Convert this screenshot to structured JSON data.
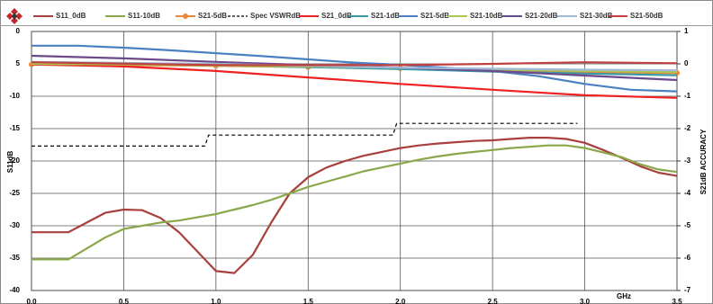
{
  "chart_data": {
    "type": "line",
    "ylabel": "S11dB",
    "y2label": "S21dB ACCURACY",
    "xlabel": "GHz",
    "xlim": [
      0,
      3.5
    ],
    "xticks": [
      {
        "value": 0,
        "label": "0.0"
      },
      0.5,
      {
        "value": 1,
        "label": "1.0"
      },
      1.5,
      {
        "value": 2,
        "label": "2.0"
      },
      2.5,
      {
        "value": 3,
        "label": "3.0"
      },
      3.5
    ],
    "ylim": [
      -40,
      0
    ],
    "yticks": [
      0,
      {
        "value": -5,
        "label": "5"
      },
      -10,
      -15,
      -20,
      -25,
      -30,
      -35,
      -40
    ],
    "y2lim": [
      -7,
      1
    ],
    "y2ticks": [
      1,
      0,
      -1,
      -2,
      -3,
      -4,
      -5,
      -6,
      -7
    ],
    "grid": true,
    "legend": "top",
    "series": [
      {
        "name": "S11_0dB",
        "color": "#a8403e",
        "x": [
          0,
          0.1,
          0.2,
          0.3,
          0.4,
          0.5,
          0.6,
          0.7,
          0.8,
          0.9,
          1.0,
          1.1,
          1.2,
          1.3,
          1.4,
          1.5,
          1.6,
          1.7,
          1.8,
          1.9,
          2.0,
          2.1,
          2.2,
          2.3,
          2.4,
          2.5,
          2.6,
          2.7,
          2.8,
          2.9,
          3.0,
          3.1,
          3.2,
          3.3,
          3.4,
          3.5
        ],
        "values": [
          -31,
          -31,
          -31,
          -29.5,
          -28,
          -27.5,
          -27.6,
          -28.8,
          -31,
          -34,
          -37,
          -37.3,
          -34.5,
          -29.5,
          -25,
          -22.5,
          -21,
          -20,
          -19.2,
          -18.6,
          -18,
          -17.6,
          -17.3,
          -17.1,
          -16.9,
          -16.8,
          -16.6,
          -16.4,
          -16.4,
          -16.6,
          -17.2,
          -18.3,
          -19.5,
          -20.8,
          -21.8,
          -22.3
        ]
      },
      {
        "name": "S11-10dB",
        "color": "#8aa84a",
        "x": [
          0,
          0.1,
          0.2,
          0.3,
          0.4,
          0.5,
          0.6,
          0.7,
          0.8,
          0.9,
          1.0,
          1.1,
          1.2,
          1.3,
          1.4,
          1.5,
          1.6,
          1.7,
          1.8,
          1.9,
          2.0,
          2.1,
          2.2,
          2.3,
          2.4,
          2.5,
          2.6,
          2.7,
          2.8,
          2.9,
          3.0,
          3.1,
          3.2,
          3.3,
          3.4,
          3.5
        ],
        "values": [
          -35.2,
          -35.2,
          -35.2,
          -33.5,
          -31.8,
          -30.5,
          -30,
          -29.5,
          -29.2,
          -28.7,
          -28.2,
          -27.5,
          -26.8,
          -26,
          -25,
          -24,
          -23.2,
          -22.4,
          -21.6,
          -21,
          -20.4,
          -19.8,
          -19.3,
          -18.9,
          -18.6,
          -18.3,
          -18,
          -17.8,
          -17.6,
          -17.6,
          -18,
          -18.7,
          -19.4,
          -20.5,
          -21.3,
          -21.7
        ]
      },
      {
        "name": "S21-5dB",
        "color": "#e8893a",
        "axis": "y2",
        "marker": true,
        "x": [
          0,
          0.5,
          1.0,
          1.5,
          2.0,
          2.5,
          3.0,
          3.5
        ],
        "values": [
          -0.02,
          -0.04,
          -0.06,
          -0.1,
          -0.14,
          -0.2,
          -0.26,
          -0.28
        ]
      },
      {
        "name": "Spec VSWRdB",
        "color": "#000000",
        "dash": true,
        "x": [
          0,
          0.94,
          0.96,
          1.96,
          1.98,
          2.96
        ],
        "values": [
          -17.7,
          -17.7,
          -16,
          -16,
          -14.2,
          -14.2
        ]
      },
      {
        "name": "S21_0dB",
        "color": "#ee2222",
        "axis": "y2",
        "x": [
          0,
          0.5,
          1.0,
          1.5,
          2.0,
          2.5,
          3.0,
          3.5
        ],
        "values": [
          -0.02,
          -0.08,
          -0.22,
          -0.42,
          -0.62,
          -0.8,
          -0.97,
          -1.05
        ]
      },
      {
        "name": "S21-1dB",
        "color": "#3a9aa8",
        "axis": "y2",
        "x": [
          0,
          0.5,
          1.0,
          1.5,
          2.0,
          2.5,
          3.0,
          3.5
        ],
        "values": [
          0.02,
          0,
          -0.04,
          -0.1,
          -0.16,
          -0.24,
          -0.3,
          -0.35
        ]
      },
      {
        "name": "S21-5dB",
        "color": "#4a80c0",
        "axis": "y2",
        "x": [
          0,
          0.25,
          0.5,
          0.75,
          1.0,
          1.25,
          1.5,
          1.75,
          2.0,
          2.25,
          2.5,
          2.75,
          3.0,
          3.25,
          3.5
        ],
        "values": [
          0.56,
          0.56,
          0.5,
          0.42,
          0.33,
          0.24,
          0.14,
          0.04,
          -0.03,
          -0.12,
          -0.22,
          -0.38,
          -0.62,
          -0.8,
          -0.85
        ]
      },
      {
        "name": "S21-10dB",
        "color": "#a8c850",
        "axis": "y2",
        "x": [
          0,
          0.5,
          1.0,
          1.5,
          2.0,
          2.5,
          3.0,
          3.5
        ],
        "values": [
          0,
          -0.02,
          -0.05,
          -0.08,
          -0.12,
          -0.17,
          -0.22,
          -0.25
        ]
      },
      {
        "name": "S21-20dB",
        "color": "#6a4a8a",
        "axis": "y2",
        "x": [
          0,
          0.5,
          1.0,
          1.5,
          2.0,
          2.5,
          3.0,
          3.5
        ],
        "values": [
          0.25,
          0.17,
          0.06,
          -0.04,
          -0.12,
          -0.22,
          -0.36,
          -0.5
        ]
      },
      {
        "name": "S21-30dB",
        "color": "#a0b8d8",
        "axis": "y2",
        "x": [
          0,
          1.0,
          2.0,
          3.0,
          3.5
        ],
        "values": [
          0.06,
          0,
          -0.12,
          -0.18,
          -0.2
        ]
      },
      {
        "name": "S21-50dB",
        "color": "#c04040",
        "axis": "y2",
        "x": [
          0,
          1.0,
          2.0,
          2.5,
          3.0,
          3.5
        ],
        "values": [
          0.05,
          -0.04,
          -0.04,
          0,
          0.05,
          0.02
        ]
      }
    ]
  }
}
